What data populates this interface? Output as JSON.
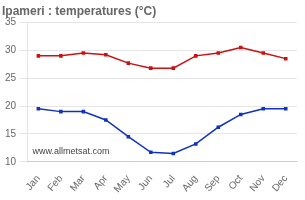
{
  "chart_data": {
    "type": "line",
    "title": "Ipameri : temperatures (°C)",
    "categories": [
      "Jan",
      "Feb",
      "Mar",
      "Apr",
      "May",
      "Jun",
      "Jul",
      "Aug",
      "Sep",
      "Oct",
      "Nov",
      "Dec"
    ],
    "series": [
      {
        "color": "#cc1111",
        "values": [
          29.0,
          29.0,
          29.5,
          29.2,
          27.7,
          26.8,
          26.8,
          29.0,
          29.5,
          30.5,
          29.5,
          28.5
        ]
      },
      {
        "color": "#1133bb",
        "values": [
          19.5,
          19.0,
          19.0,
          17.5,
          14.5,
          11.7,
          11.5,
          13.2,
          16.2,
          18.5,
          19.5,
          19.5
        ]
      }
    ],
    "ylim": [
      10,
      35
    ],
    "yticks": [
      10,
      15,
      20,
      25,
      30,
      35
    ],
    "grid": "y",
    "marker": "square",
    "annotation": "www.allmetsat.com"
  }
}
